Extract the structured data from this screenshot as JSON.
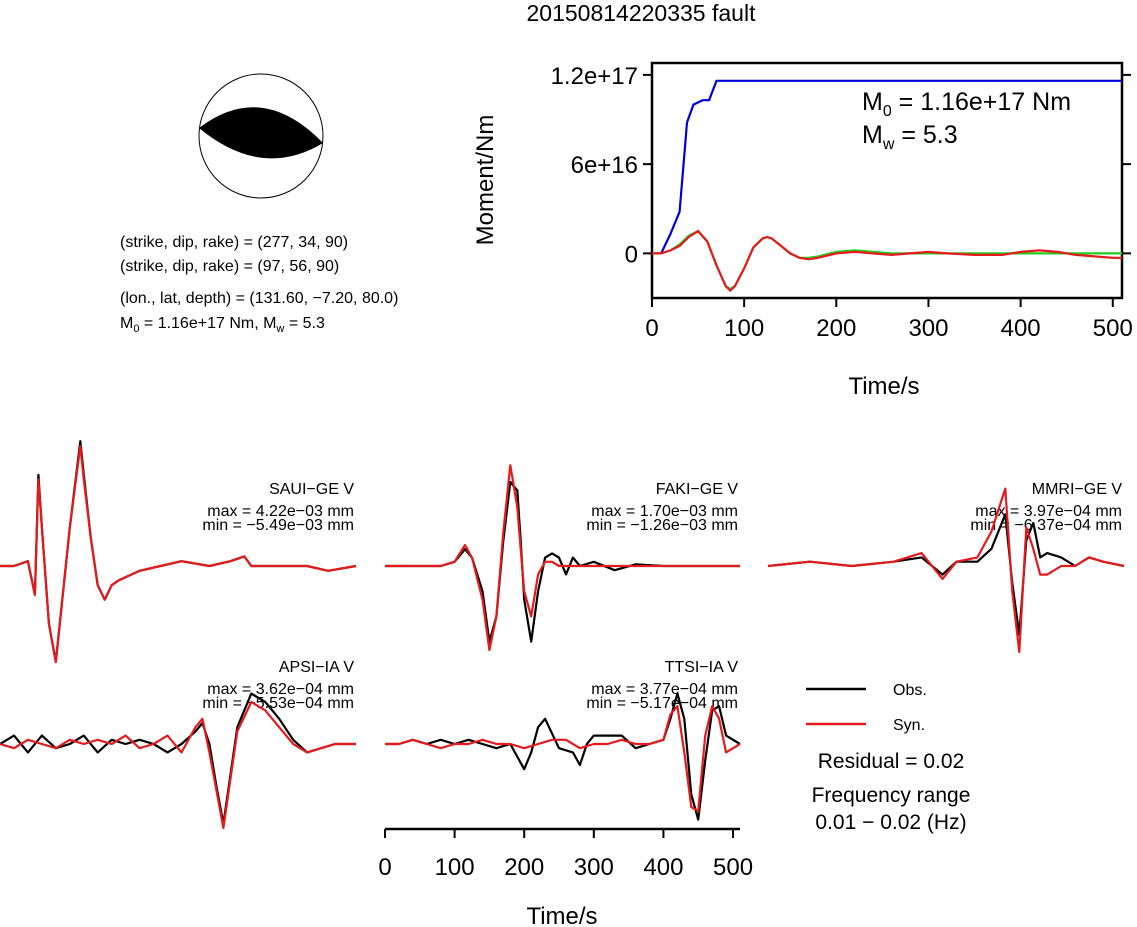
{
  "title": "20150814220335 fault",
  "mechanism": {
    "plane1": "(strike, dip, rake) = (277, 34, 90)",
    "plane2": "(strike, dip, rake) = (97, 56, 90)",
    "location": "(lon., lat, depth) = (131.60, −7.20, 80.0)",
    "moment_line_m0": "M",
    "moment_line_rest": " = 1.16e+17 Nm, M",
    "moment_line_tail": " = 5.3",
    "sub0": "0",
    "subw": "w"
  },
  "moment_plot": {
    "m0_label": "M",
    "m0_sub": "0",
    "m0_value": " = 1.16e+17 Nm",
    "mw_label": "M",
    "mw_sub": "w",
    "mw_value": " = 5.3"
  },
  "legend": {
    "obs": "Obs.",
    "syn": "Syn.",
    "obs_color": "#000000",
    "syn_color": "#e41a1c",
    "residual": "Residual = 0.02",
    "freq_title": "Frequency range",
    "freq_value": "0.01 − 0.02 (Hz)"
  },
  "chart_data": [
    {
      "type": "line",
      "name": "moment-rate-function",
      "xlabel": "Time/s",
      "ylabel": "Moment/Nm",
      "xlim": [
        0,
        510
      ],
      "ylim": [
        -3e+16,
        1.28e+17
      ],
      "xticks": [
        0,
        100,
        200,
        300,
        400,
        500
      ],
      "yticks": [
        0,
        6e+16,
        1.2e+17
      ],
      "ytick_labels": [
        "0",
        "6e+16",
        "1.2e+17"
      ],
      "series": [
        {
          "color": "#0000dd",
          "x": [
            0,
            10,
            20,
            30,
            38,
            45,
            55,
            62,
            70,
            510
          ],
          "y": [
            0,
            0,
            1.3e+16,
            2.8e+16,
            8.8e+16,
            1e+17,
            1.03e+17,
            1.03e+17,
            1.16e+17,
            1.16e+17
          ]
        },
        {
          "color": "#22cc22",
          "x": [
            0,
            10,
            20,
            30,
            40,
            50,
            60,
            70,
            80,
            85,
            90,
            100,
            110,
            120,
            125,
            130,
            140,
            150,
            160,
            170,
            180,
            200,
            220,
            240,
            260,
            280,
            300,
            350,
            400,
            450,
            510
          ],
          "y": [
            0,
            0,
            2000000000000000.0,
            6000000000000000.0,
            1.2e+16,
            1.5e+16,
            8000000000000000.0,
            -8000000000000000.0,
            -2.2e+16,
            -2.4e+16,
            -2.2e+16,
            -1e+16,
            4000000000000000.0,
            1e+16,
            1.1e+16,
            1e+16,
            5000000000000000.0,
            0,
            -3000000000000000.0,
            -3000000000000000.0,
            -2000000000000000.0,
            1000000000000000.0,
            2000000000000000.0,
            1000000000000000.0,
            0,
            0,
            0,
            0,
            0,
            0,
            0
          ]
        },
        {
          "color": "#e41a1c",
          "x": [
            0,
            10,
            20,
            30,
            40,
            50,
            60,
            70,
            80,
            85,
            90,
            100,
            110,
            120,
            125,
            130,
            140,
            150,
            160,
            170,
            180,
            200,
            220,
            240,
            260,
            280,
            300,
            320,
            350,
            380,
            400,
            420,
            440,
            460,
            480,
            500,
            510
          ],
          "y": [
            0,
            0,
            2000000000000000.0,
            5000000000000000.0,
            1.1e+16,
            1.5e+16,
            8000000000000000.0,
            -8000000000000000.0,
            -2.2e+16,
            -2.5e+16,
            -2.2e+16,
            -1e+16,
            4000000000000000.0,
            1e+16,
            1.1e+16,
            1e+16,
            5000000000000000.0,
            0,
            -3000000000000000.0,
            -4000000000000000.0,
            -3000000000000000.0,
            0,
            1000000000000000.0,
            0,
            -1000000000000000.0,
            0,
            1000000000000000.0,
            0,
            -1000000000000000.0,
            -1000000000000000.0,
            1000000000000000.0,
            2000000000000000.0,
            1000000000000000.0,
            -1000000000000000.0,
            -2000000000000000.0,
            -3000000000000000.0,
            -3000000000000000.0
          ]
        }
      ]
    },
    {
      "type": "line",
      "name": "waveforms",
      "xlabel": "Time/s",
      "xlim": [
        0,
        510
      ],
      "xticks": [
        0,
        100,
        200,
        300,
        400,
        500
      ],
      "stations": [
        {
          "label": "SAUI−GE V",
          "max": "max = 4.22e−03 mm",
          "min": "min = −5.49e−03 mm",
          "obs_x": [
            0,
            20,
            40,
            50,
            55,
            60,
            70,
            80,
            90,
            100,
            115,
            120,
            130,
            140,
            150,
            160,
            170,
            200,
            230,
            260,
            300,
            330,
            350,
            360,
            400,
            440,
            470,
            510
          ],
          "obs_y": [
            0,
            0,
            0.05,
            -0.3,
            0.95,
            0.4,
            -0.6,
            -1.0,
            -0.3,
            0.4,
            1.3,
            0.95,
            0.3,
            -0.2,
            -0.35,
            -0.2,
            -0.15,
            -0.05,
            0,
            0.05,
            0,
            0.05,
            0.1,
            0,
            0,
            0,
            -0.05,
            0
          ],
          "syn_x": [
            0,
            20,
            40,
            50,
            55,
            60,
            70,
            80,
            90,
            100,
            115,
            120,
            130,
            140,
            150,
            160,
            170,
            200,
            230,
            260,
            300,
            330,
            350,
            360,
            400,
            440,
            470,
            510
          ],
          "syn_y": [
            0,
            0,
            0.05,
            -0.3,
            0.9,
            0.4,
            -0.6,
            -1.0,
            -0.3,
            0.4,
            1.25,
            0.9,
            0.3,
            -0.2,
            -0.35,
            -0.2,
            -0.15,
            -0.05,
            0,
            0.05,
            0,
            0.05,
            0.1,
            0,
            0,
            0,
            -0.05,
            0
          ]
        },
        {
          "label": "FAKI−GE V",
          "max": "max = 1.70e−03 mm",
          "min": "min = −1.26e−03 mm",
          "obs_x": [
            0,
            60,
            80,
            100,
            115,
            125,
            140,
            150,
            160,
            170,
            180,
            190,
            195,
            200,
            210,
            220,
            230,
            240,
            250,
            260,
            270,
            280,
            300,
            330,
            360,
            400,
            450,
            510
          ],
          "obs_y": [
            0,
            0,
            0,
            0.05,
            0.2,
            0.1,
            -0.3,
            -0.9,
            -0.6,
            0.3,
            1.0,
            0.9,
            0.3,
            -0.4,
            -0.9,
            -0.3,
            0.1,
            0.15,
            0.1,
            -0.1,
            0.1,
            0,
            0.05,
            -0.05,
            0.02,
            0,
            0,
            0
          ],
          "syn_x": [
            0,
            60,
            80,
            100,
            115,
            125,
            140,
            150,
            160,
            170,
            180,
            190,
            195,
            200,
            210,
            220,
            230,
            240,
            250,
            260,
            270,
            280,
            300,
            330,
            360,
            400,
            450,
            510
          ],
          "syn_y": [
            0,
            0,
            0,
            0.05,
            0.25,
            0.1,
            -0.4,
            -1.0,
            -0.6,
            0.4,
            1.2,
            0.7,
            0.2,
            -0.3,
            -0.6,
            -0.1,
            0.05,
            0.05,
            0,
            0,
            0,
            0,
            0,
            0,
            0,
            0,
            0,
            0
          ]
        },
        {
          "label": "MMRI−GE V",
          "max": "max = 3.97e−04 mm",
          "min": "min = −6.37e−04 mm",
          "obs_x": [
            0,
            60,
            120,
            180,
            220,
            250,
            270,
            300,
            320,
            340,
            350,
            360,
            370,
            380,
            390,
            400,
            420,
            440,
            460,
            480,
            510
          ],
          "obs_y": [
            0,
            0.05,
            0,
            0.05,
            0.1,
            -0.1,
            0.05,
            0.05,
            0.2,
            0.6,
            -0.2,
            -0.8,
            0.3,
            0.5,
            0.1,
            0.15,
            0.1,
            0,
            0.1,
            0.05,
            0
          ],
          "syn_x": [
            0,
            60,
            120,
            180,
            220,
            250,
            270,
            300,
            320,
            340,
            350,
            360,
            370,
            380,
            390,
            400,
            420,
            440,
            460,
            480,
            510
          ],
          "syn_y": [
            0,
            0.05,
            0,
            0.05,
            0.15,
            -0.15,
            0.05,
            0.1,
            0.4,
            0.9,
            -0.3,
            -1.0,
            0.45,
            0.2,
            -0.1,
            -0.1,
            0,
            0,
            0.1,
            0.05,
            0
          ]
        },
        {
          "label": "APSI−IA V",
          "max": "max = 3.62e−04 mm",
          "min": "min = −5.53e−04 mm",
          "obs_x": [
            0,
            20,
            40,
            60,
            80,
            100,
            120,
            140,
            160,
            180,
            200,
            220,
            240,
            260,
            280,
            290,
            300,
            310,
            320,
            340,
            360,
            380,
            400,
            420,
            440,
            460,
            480,
            510
          ],
          "obs_y": [
            0,
            0.1,
            -0.1,
            0.1,
            -0.05,
            0,
            0.1,
            -0.1,
            0.05,
            0,
            0.05,
            0,
            -0.1,
            0,
            0.15,
            0.25,
            0,
            -0.5,
            -0.95,
            0.2,
            0.6,
            0.5,
            0.3,
            0.05,
            -0.1,
            -0.05,
            0,
            0
          ],
          "syn_x": [
            0,
            20,
            40,
            60,
            80,
            100,
            120,
            140,
            160,
            180,
            200,
            220,
            240,
            260,
            280,
            290,
            300,
            310,
            320,
            340,
            360,
            380,
            400,
            420,
            440,
            460,
            480,
            510
          ],
          "syn_y": [
            0,
            -0.05,
            0.05,
            0,
            -0.05,
            0.05,
            0,
            0.05,
            0,
            0.1,
            -0.05,
            0,
            0.1,
            -0.1,
            0.2,
            0.3,
            -0.1,
            -0.55,
            -1.0,
            0.15,
            0.5,
            0.4,
            0.2,
            0,
            -0.1,
            -0.05,
            0,
            0
          ]
        },
        {
          "label": "TTSI−IA V",
          "max": "max = 3.77e−04 mm",
          "min": "min = −5.17e−04 mm",
          "obs_x": [
            0,
            20,
            40,
            60,
            80,
            100,
            120,
            140,
            160,
            180,
            200,
            210,
            220,
            230,
            250,
            270,
            280,
            290,
            300,
            320,
            340,
            360,
            380,
            400,
            410,
            420,
            430,
            440,
            450,
            460,
            470,
            480,
            490,
            510
          ],
          "obs_y": [
            0,
            0,
            0.05,
            0,
            0.05,
            0,
            0.05,
            0,
            -0.05,
            0,
            -0.3,
            -0.1,
            0.2,
            0.3,
            -0.05,
            -0.1,
            -0.25,
            0,
            0.1,
            0.1,
            0.1,
            -0.05,
            0,
            0.05,
            0.3,
            0.6,
            0.3,
            -0.6,
            -0.9,
            -0.2,
            0.4,
            0.45,
            0.1,
            0
          ],
          "syn_x": [
            0,
            20,
            40,
            60,
            80,
            100,
            120,
            140,
            160,
            180,
            200,
            220,
            240,
            260,
            280,
            300,
            320,
            340,
            360,
            380,
            400,
            410,
            420,
            430,
            440,
            450,
            460,
            470,
            480,
            490,
            510
          ],
          "syn_y": [
            0,
            0,
            0.05,
            0,
            -0.05,
            0,
            0,
            0.05,
            0,
            0,
            -0.05,
            0,
            0.05,
            0.05,
            -0.05,
            0,
            0,
            0.05,
            0,
            0,
            0.05,
            0.35,
            0.45,
            -0.1,
            -0.75,
            -0.8,
            0.1,
            0.45,
            0.3,
            -0.1,
            0
          ]
        }
      ]
    }
  ]
}
